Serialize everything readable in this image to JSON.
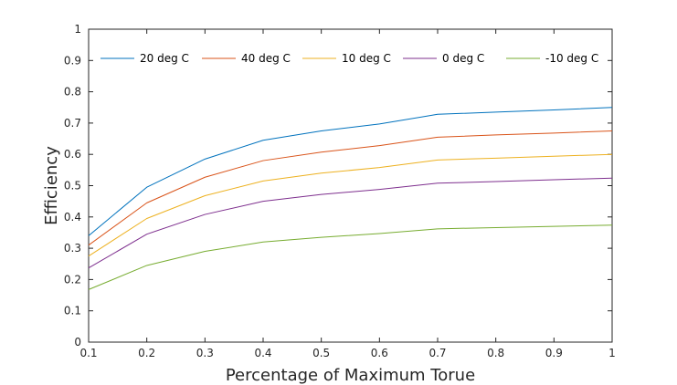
{
  "chart_data": {
    "type": "line",
    "xlabel": "Percentage of Maximum Torue",
    "ylabel": "Efficiency",
    "xlim": [
      0.1,
      1
    ],
    "ylim": [
      0,
      1
    ],
    "xticks": [
      "0.1",
      "0.2",
      "0.3",
      "0.4",
      "0.5",
      "0.6",
      "0.7",
      "0.8",
      "0.9",
      "1"
    ],
    "yticks": [
      "0",
      "0.1",
      "0.2",
      "0.3",
      "0.4",
      "0.5",
      "0.6",
      "0.7",
      "0.8",
      "0.9",
      "1"
    ],
    "grid": false,
    "legend_position": "top",
    "x": [
      0.1,
      0.2,
      0.3,
      0.4,
      0.5,
      0.6,
      0.7,
      0.8,
      0.9,
      1.0
    ],
    "series": [
      {
        "name": "20 deg C",
        "color": "#0072BD",
        "values": [
          0.34,
          0.495,
          0.585,
          0.645,
          0.675,
          0.697,
          0.728,
          0.735,
          0.742,
          0.75
        ]
      },
      {
        "name": "40 deg C",
        "color": "#D95319",
        "values": [
          0.31,
          0.445,
          0.527,
          0.58,
          0.607,
          0.628,
          0.655,
          0.662,
          0.668,
          0.675
        ]
      },
      {
        "name": "10 deg C",
        "color": "#EDB120",
        "values": [
          0.275,
          0.395,
          0.468,
          0.515,
          0.54,
          0.558,
          0.582,
          0.588,
          0.594,
          0.6
        ]
      },
      {
        "name": "0 deg C",
        "color": "#7E2F8E",
        "values": [
          0.237,
          0.345,
          0.408,
          0.45,
          0.472,
          0.488,
          0.508,
          0.513,
          0.519,
          0.524
        ]
      },
      {
        "name": "-10 deg C",
        "color": "#77AC30",
        "values": [
          0.168,
          0.245,
          0.29,
          0.32,
          0.335,
          0.347,
          0.362,
          0.366,
          0.37,
          0.374
        ]
      }
    ]
  }
}
